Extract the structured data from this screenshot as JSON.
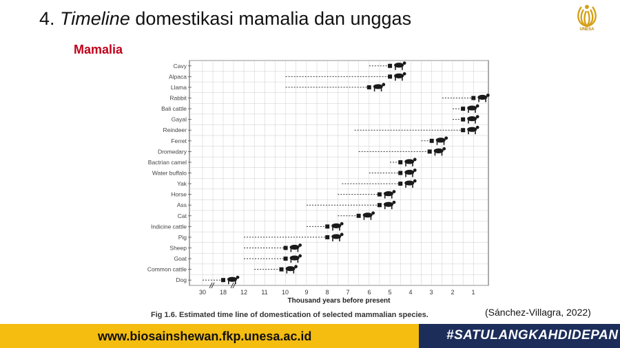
{
  "slide": {
    "title_number": "4.",
    "title_italic": "Timeline",
    "title_rest": "domestikasi mamalia dan unggas",
    "section": "Mamalia",
    "logo_text": "UNESA",
    "caption": "Fig 1.6. Estimated time line of domestication of selected mammalian species.",
    "citation": "(Sánchez-Villagra, 2022)",
    "footer_url": "www.biosainshewan.fkp.unesa.ac.id",
    "footer_tag": "#SATULANGKAHDIDEPAN"
  },
  "colors": {
    "accent_red": "#c0001a",
    "footer_yellow": "#f5bd10",
    "footer_navy": "#1c2d5a",
    "grid": "#cccccc",
    "marker": "#1a1a1a"
  },
  "chart_data": {
    "type": "scatter",
    "title": "",
    "xlabel": "Thousand years before present",
    "x_ticks": [
      "30",
      "18",
      "12",
      "11",
      "10",
      "9",
      "8",
      "7",
      "6",
      "5",
      "4",
      "3",
      "2",
      "1"
    ],
    "x_scale": "broken axis: 30 and 18 compressed, linear from 12 to 0",
    "grid": true,
    "species": [
      {
        "name": "Cavy",
        "start": 6.0,
        "marker": 5.0
      },
      {
        "name": "Alpaca",
        "start": 10.0,
        "marker": 5.0
      },
      {
        "name": "Llama",
        "start": 10.0,
        "marker": 6.0
      },
      {
        "name": "Rabbit",
        "start": 2.5,
        "marker": 1.0
      },
      {
        "name": "Bali cattle",
        "start": 2.0,
        "marker": 1.5
      },
      {
        "name": "Gayal",
        "start": 2.0,
        "marker": 1.5
      },
      {
        "name": "Reindeer",
        "start": 6.7,
        "marker": 1.5
      },
      {
        "name": "Ferret",
        "start": 3.5,
        "marker": 3.0
      },
      {
        "name": "Dromedary",
        "start": 6.5,
        "marker": 3.1
      },
      {
        "name": "Bactrian camel",
        "start": 5.0,
        "marker": 4.5
      },
      {
        "name": "Water buffalo",
        "start": 6.0,
        "marker": 4.5
      },
      {
        "name": "Yak",
        "start": 7.3,
        "marker": 4.5
      },
      {
        "name": "Horse",
        "start": 7.5,
        "marker": 5.5
      },
      {
        "name": "Ass",
        "start": 9.0,
        "marker": 5.5
      },
      {
        "name": "Cat",
        "start": 7.5,
        "marker": 6.5
      },
      {
        "name": "Indicine cattle",
        "start": 9.0,
        "marker": 8.0
      },
      {
        "name": "Pig",
        "start": 12.0,
        "marker": 8.0
      },
      {
        "name": "Sheep",
        "start": 12.0,
        "marker": 10.0
      },
      {
        "name": "Goat",
        "start": 12.0,
        "marker": 10.0
      },
      {
        "name": "Common cattle",
        "start": 11.5,
        "marker": 10.2
      },
      {
        "name": "Dog",
        "start": 30.0,
        "marker": 18.0
      }
    ]
  }
}
